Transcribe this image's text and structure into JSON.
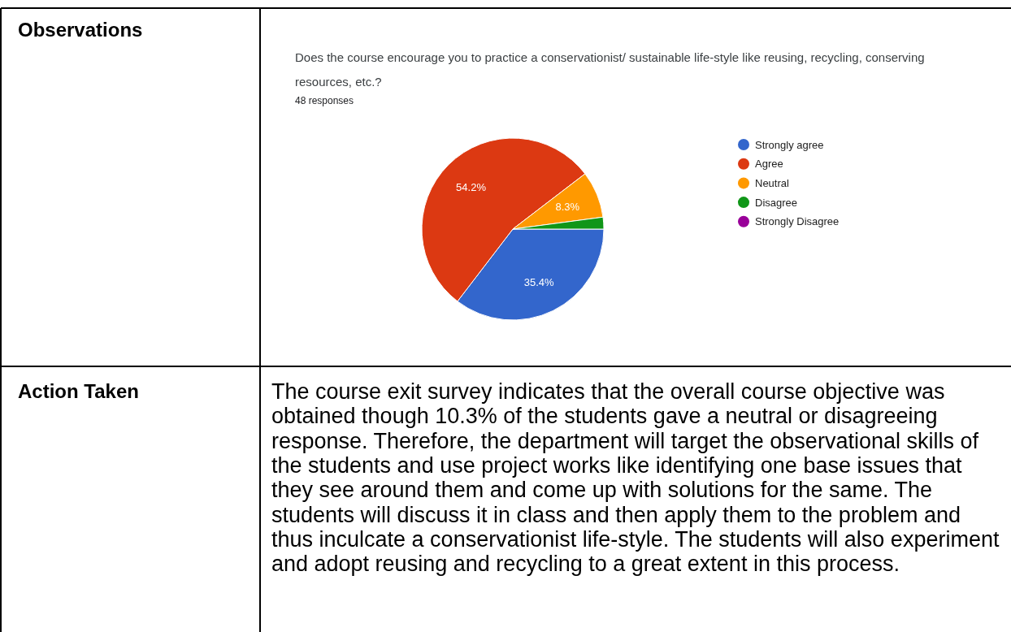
{
  "chart_data": {
    "type": "pie",
    "title": "Does the course encourage you to practice a conservationist/ sustainable life-style like reusing, recycling, conserving resources, etc.?",
    "subtitle": "48 responses",
    "categories": [
      "Strongly agree",
      "Agree",
      "Neutral",
      "Disagree",
      "Strongly Disagree"
    ],
    "values": [
      35.4,
      54.2,
      8.3,
      2.1,
      0
    ],
    "colors": [
      "#3366cc",
      "#dc3912",
      "#ff9900",
      "#109618",
      "#990099"
    ],
    "value_labels": [
      "35.4%",
      "54.2%",
      "8.3%",
      null,
      null
    ],
    "legend": "right",
    "annotations": [
      "Observations",
      "Action Taken",
      "The course exit survey indicates that the overall course objective was obtained though 10.3% of the students gave a neutral or disagreeing response. Therefore, the department will target the observational skills of the students and use project works like identifying one base issues that they see around them and come up with solutions for the same. The students will discuss it in class and then apply them to the problem and thus inculcate a conservationist life-style. The students will also experiment and adopt reusing and recycling to a great extent in this process."
    ]
  }
}
